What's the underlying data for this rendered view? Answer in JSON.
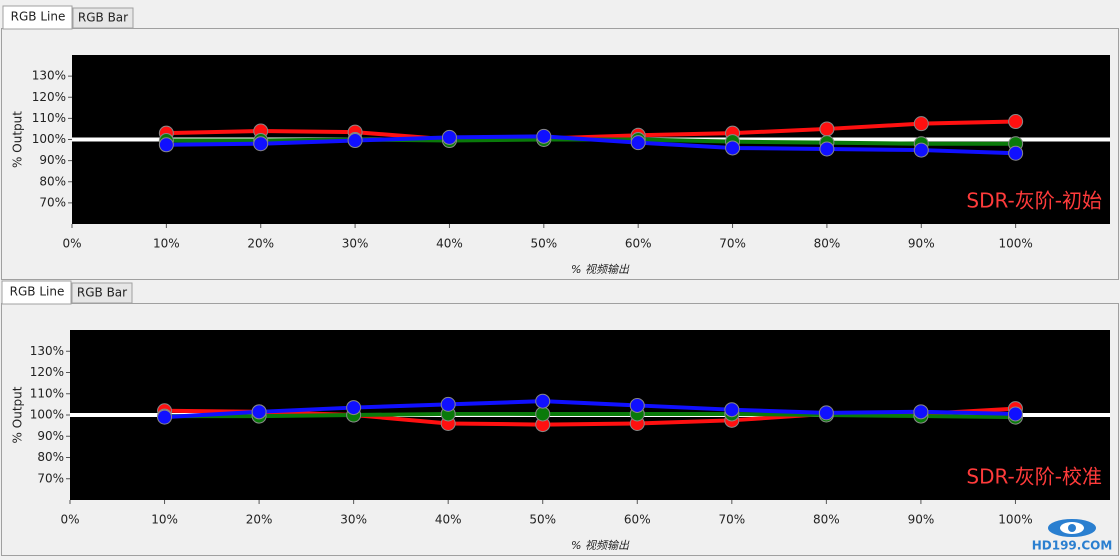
{
  "tabs": [
    [
      "RGB Line",
      "RGB Bar"
    ],
    [
      "RGB Line",
      "RGB Bar"
    ]
  ],
  "watermark": "HD199.COM",
  "chart_data": [
    {
      "type": "line",
      "annotation": "SDR-灰阶-初始",
      "xlabel": "% 视频输出",
      "ylabel": "% Output",
      "x": [
        10,
        20,
        30,
        40,
        50,
        60,
        70,
        80,
        90,
        100
      ],
      "xlim": [
        0,
        110
      ],
      "xticks": [
        {
          "value": 0,
          "label": "0%"
        },
        {
          "value": 10,
          "label": "10%"
        },
        {
          "value": 20,
          "label": "20%"
        },
        {
          "value": 30,
          "label": "30%"
        },
        {
          "value": 40,
          "label": "40%"
        },
        {
          "value": 50,
          "label": "50%"
        },
        {
          "value": 60,
          "label": "60%"
        },
        {
          "value": 70,
          "label": "70%"
        },
        {
          "value": 80,
          "label": "80%"
        },
        {
          "value": 90,
          "label": "90%"
        },
        {
          "value": 100,
          "label": "100%"
        }
      ],
      "ylim": [
        60,
        140
      ],
      "yticks": [
        {
          "value": 70,
          "label": "70%"
        },
        {
          "value": 80,
          "label": "80%"
        },
        {
          "value": 90,
          "label": "90%"
        },
        {
          "value": 100,
          "label": "100%"
        },
        {
          "value": 110,
          "label": "110%"
        },
        {
          "value": 120,
          "label": "120%"
        },
        {
          "value": 130,
          "label": "130%"
        }
      ],
      "reference": 100,
      "reference_color": "#ffffff",
      "series": [
        {
          "color": "#ff1010",
          "values": [
            103,
            104,
            103.5,
            100,
            100.5,
            102,
            103,
            105,
            107.5,
            108.5
          ]
        },
        {
          "color": "#0a7a0a",
          "values": [
            99.5,
            99.5,
            100,
            99.5,
            100,
            100,
            99,
            98.5,
            98,
            98
          ]
        },
        {
          "color": "#1010ff",
          "values": [
            97.5,
            98,
            99.5,
            101,
            101.5,
            98.5,
            96,
            95.5,
            95,
            93.5
          ]
        }
      ]
    },
    {
      "type": "line",
      "annotation": "SDR-灰阶-校准",
      "xlabel": "% 视频输出",
      "ylabel": "% Output",
      "x": [
        10,
        20,
        30,
        40,
        50,
        60,
        70,
        80,
        90,
        100
      ],
      "xlim": [
        0,
        110
      ],
      "xticks": [
        {
          "value": 0,
          "label": "0%"
        },
        {
          "value": 10,
          "label": "10%"
        },
        {
          "value": 20,
          "label": "20%"
        },
        {
          "value": 30,
          "label": "30%"
        },
        {
          "value": 40,
          "label": "40%"
        },
        {
          "value": 50,
          "label": "50%"
        },
        {
          "value": 60,
          "label": "60%"
        },
        {
          "value": 70,
          "label": "70%"
        },
        {
          "value": 80,
          "label": "80%"
        },
        {
          "value": 90,
          "label": "90%"
        },
        {
          "value": 100,
          "label": "100%"
        }
      ],
      "ylim": [
        60,
        140
      ],
      "yticks": [
        {
          "value": 70,
          "label": "70%"
        },
        {
          "value": 80,
          "label": "80%"
        },
        {
          "value": 90,
          "label": "90%"
        },
        {
          "value": 100,
          "label": "100%"
        },
        {
          "value": 110,
          "label": "110%"
        },
        {
          "value": 120,
          "label": "120%"
        },
        {
          "value": 130,
          "label": "130%"
        }
      ],
      "reference": 100,
      "reference_color": "#ffffff",
      "series": [
        {
          "color": "#ff1010",
          "values": [
            102,
            101.5,
            100,
            96,
            95.5,
            96,
            97.5,
            100.5,
            100.5,
            103
          ]
        },
        {
          "color": "#0a7a0a",
          "values": [
            99.5,
            99.5,
            100,
            100.5,
            100.5,
            100.5,
            100.5,
            100,
            99.5,
            99
          ]
        },
        {
          "color": "#1010ff",
          "values": [
            99,
            101.5,
            103.5,
            105,
            106.5,
            104.5,
            102.5,
            101,
            101.5,
            100.5
          ]
        }
      ]
    }
  ]
}
